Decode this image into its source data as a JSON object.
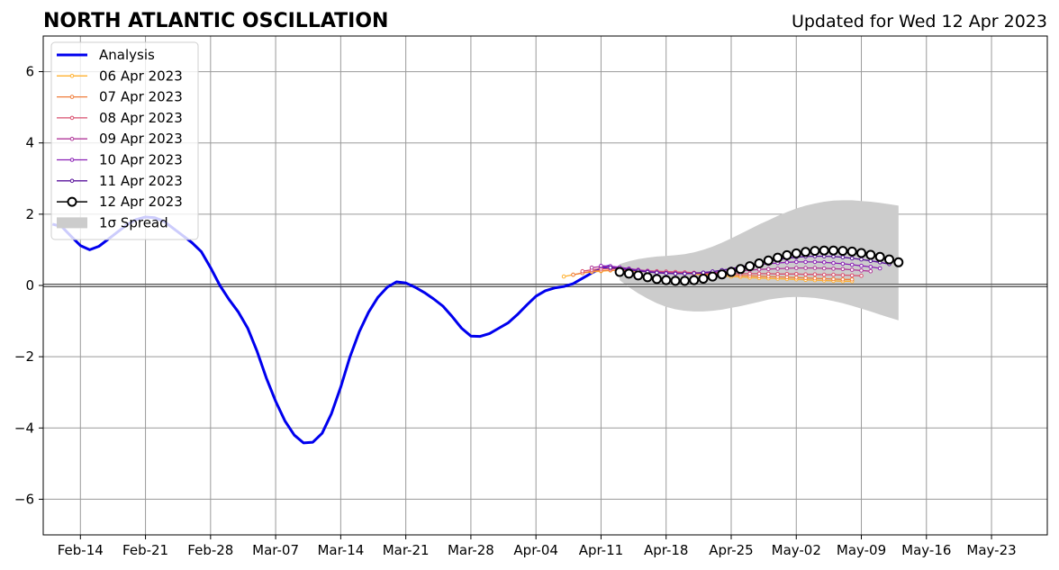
{
  "chart_data": {
    "type": "line",
    "title": "NORTH ATLANTIC OSCILLATION",
    "subtitle": "Updated for Wed 12 Apr 2023",
    "xlabel": "",
    "ylabel": "",
    "ylim": [
      -7,
      7
    ],
    "xlim": [
      "2023-02-10",
      "2023-05-29"
    ],
    "yticks": [
      -6,
      -4,
      -2,
      0,
      2,
      4,
      6
    ],
    "yticklabels": [
      "−6",
      "−4",
      "−2",
      "0",
      "2",
      "4",
      "6"
    ],
    "xticks": [
      "2023-02-14",
      "2023-02-21",
      "2023-02-28",
      "2023-03-07",
      "2023-03-14",
      "2023-03-21",
      "2023-03-28",
      "2023-04-04",
      "2023-04-11",
      "2023-04-18",
      "2023-04-25",
      "2023-05-02",
      "2023-05-09",
      "2023-05-16",
      "2023-05-23"
    ],
    "xticklabels": [
      "Feb-14",
      "Feb-21",
      "Feb-28",
      "Mar-07",
      "Mar-14",
      "Mar-21",
      "Mar-28",
      "Apr-04",
      "Apr-11",
      "Apr-18",
      "Apr-25",
      "May-02",
      "May-09",
      "May-16",
      "May-23"
    ],
    "grid": true,
    "zero_line": true,
    "legend_position": "top-left",
    "legend": [
      "Analysis",
      "06 Apr 2023",
      "07 Apr 2023",
      "08 Apr 2023",
      "09 Apr 2023",
      "10 Apr 2023",
      "11 Apr 2023",
      "12 Apr 2023",
      "1σ Spread"
    ],
    "series": [
      {
        "name": "Analysis",
        "color": "#0000ee",
        "style": "line",
        "start": "2023-02-11",
        "values": [
          1.72,
          1.65,
          1.38,
          1.12,
          1.0,
          1.1,
          1.3,
          1.5,
          1.7,
          1.85,
          1.92,
          1.9,
          1.8,
          1.6,
          1.4,
          1.2,
          0.95,
          0.5,
          0.0,
          -0.4,
          -0.75,
          -1.2,
          -1.85,
          -2.6,
          -3.25,
          -3.8,
          -4.2,
          -4.42,
          -4.4,
          -4.15,
          -3.6,
          -2.85,
          -2.0,
          -1.3,
          -0.75,
          -0.33,
          -0.05,
          0.1,
          0.07,
          -0.05,
          -0.2,
          -0.38,
          -0.58,
          -0.88,
          -1.2,
          -1.42,
          -1.43,
          -1.35,
          -1.2,
          -1.05,
          -0.82,
          -0.55,
          -0.3,
          -0.15,
          -0.07,
          -0.03,
          0.05,
          0.2,
          0.35,
          0.48,
          0.55
        ]
      },
      {
        "name": "06 Apr 2023",
        "color": "#ffb02e",
        "style": "small-marker",
        "start": "2023-04-07",
        "values": [
          0.25,
          0.3,
          0.35,
          0.38,
          0.4,
          0.42,
          0.42,
          0.41,
          0.4,
          0.39,
          0.38,
          0.37,
          0.36,
          0.34,
          0.32,
          0.3,
          0.28,
          0.26,
          0.25,
          0.24,
          0.22,
          0.21,
          0.2,
          0.19,
          0.18,
          0.17,
          0.16,
          0.15,
          0.14,
          0.13,
          0.12,
          0.12
        ]
      },
      {
        "name": "07 Apr 2023",
        "color": "#f07d3a",
        "style": "small-marker",
        "start": "2023-04-08",
        "values": [
          0.3,
          0.35,
          0.4,
          0.42,
          0.43,
          0.42,
          0.41,
          0.4,
          0.39,
          0.38,
          0.37,
          0.36,
          0.35,
          0.33,
          0.32,
          0.31,
          0.3,
          0.29,
          0.28,
          0.27,
          0.26,
          0.25,
          0.24,
          0.23,
          0.22,
          0.21,
          0.2,
          0.19,
          0.18,
          0.17,
          0.17
        ]
      },
      {
        "name": "08 Apr 2023",
        "color": "#d94f6e",
        "style": "small-marker",
        "start": "2023-04-09",
        "values": [
          0.4,
          0.44,
          0.47,
          0.47,
          0.46,
          0.44,
          0.43,
          0.41,
          0.4,
          0.39,
          0.38,
          0.37,
          0.36,
          0.35,
          0.34,
          0.34,
          0.33,
          0.33,
          0.33,
          0.33,
          0.33,
          0.32,
          0.32,
          0.32,
          0.31,
          0.31,
          0.3,
          0.3,
          0.29,
          0.28,
          0.27
        ]
      },
      {
        "name": "09 Apr 2023",
        "color": "#b0379a",
        "style": "small-marker",
        "start": "2023-04-10",
        "values": [
          0.5,
          0.53,
          0.52,
          0.5,
          0.47,
          0.44,
          0.41,
          0.38,
          0.36,
          0.35,
          0.34,
          0.34,
          0.35,
          0.36,
          0.37,
          0.39,
          0.41,
          0.43,
          0.45,
          0.46,
          0.47,
          0.48,
          0.49,
          0.49,
          0.49,
          0.48,
          0.47,
          0.46,
          0.44,
          0.42,
          0.4
        ]
      },
      {
        "name": "10 Apr 2023",
        "color": "#8a1fb5",
        "style": "small-marker",
        "start": "2023-04-11",
        "values": [
          0.55,
          0.54,
          0.51,
          0.47,
          0.43,
          0.39,
          0.36,
          0.34,
          0.33,
          0.33,
          0.34,
          0.36,
          0.39,
          0.42,
          0.46,
          0.5,
          0.54,
          0.58,
          0.61,
          0.63,
          0.65,
          0.66,
          0.66,
          0.66,
          0.65,
          0.63,
          0.61,
          0.58,
          0.55,
          0.52,
          0.48
        ]
      },
      {
        "name": "11 Apr 2023",
        "color": "#5a139c",
        "style": "small-marker",
        "start": "2023-04-12",
        "values": [
          0.5,
          0.47,
          0.44,
          0.41,
          0.38,
          0.36,
          0.34,
          0.33,
          0.33,
          0.34,
          0.36,
          0.39,
          0.43,
          0.47,
          0.52,
          0.57,
          0.62,
          0.67,
          0.72,
          0.76,
          0.79,
          0.81,
          0.82,
          0.82,
          0.81,
          0.79,
          0.76,
          0.73,
          0.69,
          0.65,
          0.6
        ]
      },
      {
        "name": "12 Apr 2023",
        "color": "#000000",
        "style": "big-marker",
        "start": "2023-04-13",
        "values": [
          0.38,
          0.33,
          0.28,
          0.23,
          0.18,
          0.15,
          0.13,
          0.13,
          0.15,
          0.19,
          0.25,
          0.31,
          0.38,
          0.46,
          0.54,
          0.62,
          0.7,
          0.78,
          0.85,
          0.9,
          0.94,
          0.97,
          0.98,
          0.98,
          0.97,
          0.95,
          0.91,
          0.86,
          0.8,
          0.73,
          0.65
        ]
      }
    ],
    "spread": {
      "name": "1σ Spread",
      "color": "#cccccc",
      "start": "2023-04-13",
      "upper": [
        0.6,
        0.68,
        0.74,
        0.78,
        0.81,
        0.83,
        0.85,
        0.88,
        0.93,
        1.0,
        1.09,
        1.2,
        1.32,
        1.45,
        1.58,
        1.71,
        1.83,
        1.95,
        2.06,
        2.16,
        2.24,
        2.3,
        2.35,
        2.38,
        2.39,
        2.39,
        2.37,
        2.35,
        2.32,
        2.28,
        2.24
      ],
      "lower": [
        0.15,
        -0.05,
        -0.22,
        -0.37,
        -0.5,
        -0.6,
        -0.67,
        -0.71,
        -0.73,
        -0.73,
        -0.71,
        -0.68,
        -0.63,
        -0.58,
        -0.52,
        -0.46,
        -0.4,
        -0.36,
        -0.33,
        -0.32,
        -0.33,
        -0.35,
        -0.39,
        -0.44,
        -0.5,
        -0.57,
        -0.65,
        -0.73,
        -0.82,
        -0.9,
        -0.98
      ]
    }
  }
}
